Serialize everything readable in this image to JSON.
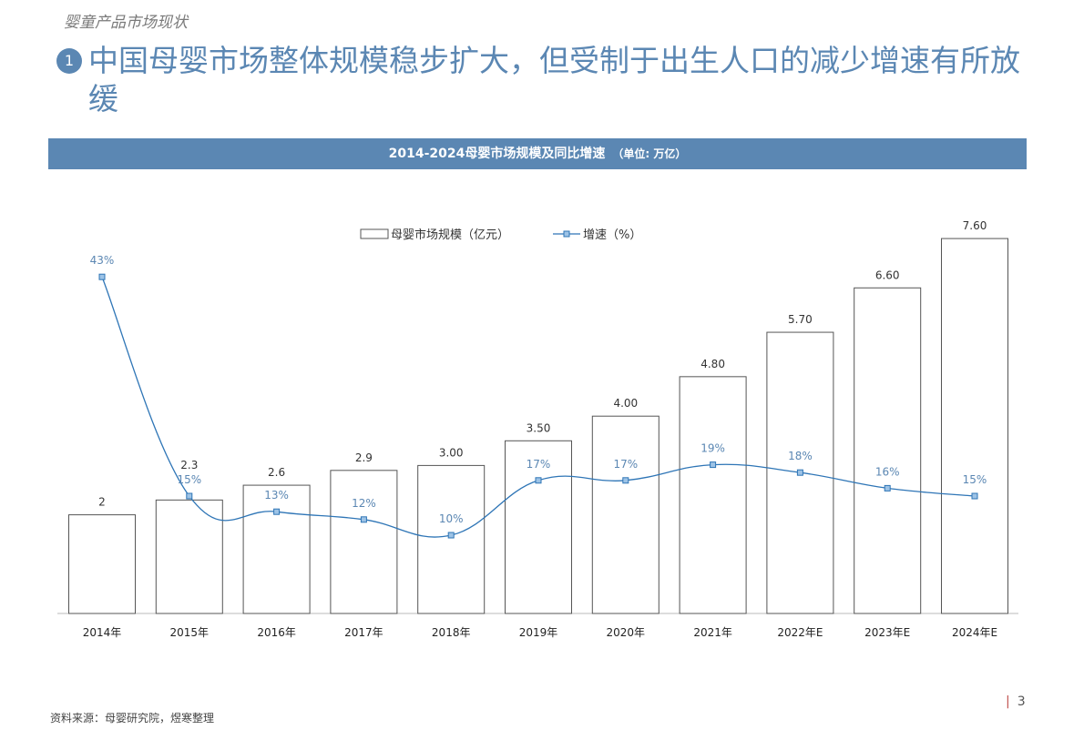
{
  "section_label": "婴童产品市场现状",
  "badge_number": "1",
  "title": "中国母婴市场整体规模稳步扩大，但受制于出生人口的减少增速有所放缓",
  "banner": {
    "title": "2014-2024母婴市场规模及同比增速",
    "unit": "（单位: 万亿）"
  },
  "source": "资料来源：母婴研究院，煜寒整理",
  "page_number": "3",
  "page_separator": "|",
  "colors": {
    "accent": "#5b87b3",
    "line": "#2e75b6",
    "bar_stroke": "#555555"
  },
  "chart_data": {
    "type": "bar+line",
    "categories": [
      "2014年",
      "2015年",
      "2016年",
      "2017年",
      "2018年",
      "2019年",
      "2020年",
      "2021年",
      "2022年E",
      "2023年E",
      "2024年E"
    ],
    "series": [
      {
        "name": "母婴市场规模（亿元）",
        "type": "bar",
        "values": [
          2,
          2.3,
          2.6,
          2.9,
          3.0,
          3.5,
          4.0,
          4.8,
          5.7,
          6.6,
          7.6
        ],
        "labels": [
          "2",
          "2.3",
          "2.6",
          "2.9",
          "3.00",
          "3.50",
          "4.00",
          "4.80",
          "5.70",
          "6.60",
          "7.60"
        ]
      },
      {
        "name": "增速（%）",
        "type": "line",
        "values": [
          43,
          15,
          13,
          12,
          10,
          17,
          17,
          19,
          18,
          16,
          15
        ],
        "labels": [
          "43%",
          "15%",
          "13%",
          "12%",
          "10%",
          "17%",
          "17%",
          "19%",
          "18%",
          "16%",
          "15%"
        ]
      }
    ],
    "legend_position": "top-center",
    "grid": false
  }
}
